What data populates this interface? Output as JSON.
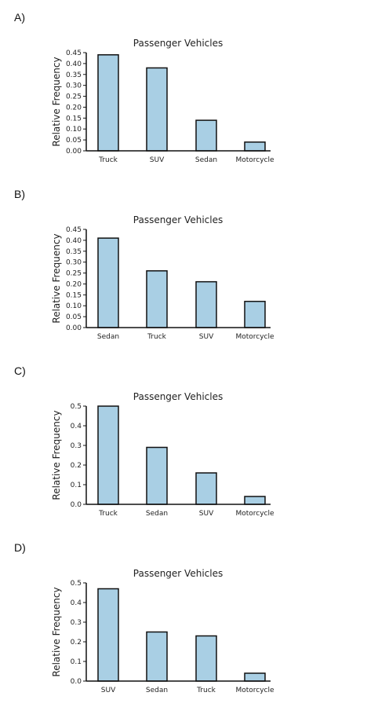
{
  "options": [
    {
      "label": "A)"
    },
    {
      "label": "B)"
    },
    {
      "label": "C)"
    },
    {
      "label": "D)"
    }
  ],
  "chart_data": [
    {
      "type": "bar",
      "title": "Passenger Vehicles",
      "xlabel": "",
      "ylabel": "Relative Frequency",
      "categories": [
        "Truck",
        "SUV",
        "Sedan",
        "Motorcycle"
      ],
      "values": [
        0.44,
        0.38,
        0.14,
        0.04
      ],
      "ylim": [
        0,
        0.45
      ],
      "yticks": [
        "0.00",
        "0.05",
        "0.10",
        "0.15",
        "0.20",
        "0.25",
        "0.30",
        "0.35",
        "0.40",
        "0.45"
      ],
      "bar_color": "#a9cfe4",
      "grid": false
    },
    {
      "type": "bar",
      "title": "Passenger Vehicles",
      "xlabel": "",
      "ylabel": "Relative Frequency",
      "categories": [
        "Sedan",
        "Truck",
        "SUV",
        "Motorcycle"
      ],
      "values": [
        0.41,
        0.26,
        0.21,
        0.12
      ],
      "ylim": [
        0,
        0.45
      ],
      "yticks": [
        "0.00",
        "0.05",
        "0.10",
        "0.15",
        "0.20",
        "0.25",
        "0.30",
        "0.35",
        "0.40",
        "0.45"
      ],
      "bar_color": "#a9cfe4",
      "grid": false
    },
    {
      "type": "bar",
      "title": "Passenger Vehicles",
      "xlabel": "",
      "ylabel": "Relative Frequency",
      "categories": [
        "Truck",
        "Sedan",
        "SUV",
        "Motorcycle"
      ],
      "values": [
        0.5,
        0.29,
        0.16,
        0.04
      ],
      "ylim": [
        0,
        0.5
      ],
      "yticks": [
        "0.0",
        "0.1",
        "0.2",
        "0.3",
        "0.4",
        "0.5"
      ],
      "bar_color": "#a9cfe4",
      "grid": false
    },
    {
      "type": "bar",
      "title": "Passenger Vehicles",
      "xlabel": "",
      "ylabel": "Relative Frequency",
      "categories": [
        "SUV",
        "Sedan",
        "Truck",
        "Motorcycle"
      ],
      "values": [
        0.47,
        0.25,
        0.23,
        0.04
      ],
      "ylim": [
        0,
        0.5
      ],
      "yticks": [
        "0.0",
        "0.1",
        "0.2",
        "0.3",
        "0.4",
        "0.5"
      ],
      "bar_color": "#a9cfe4",
      "grid": false
    }
  ]
}
